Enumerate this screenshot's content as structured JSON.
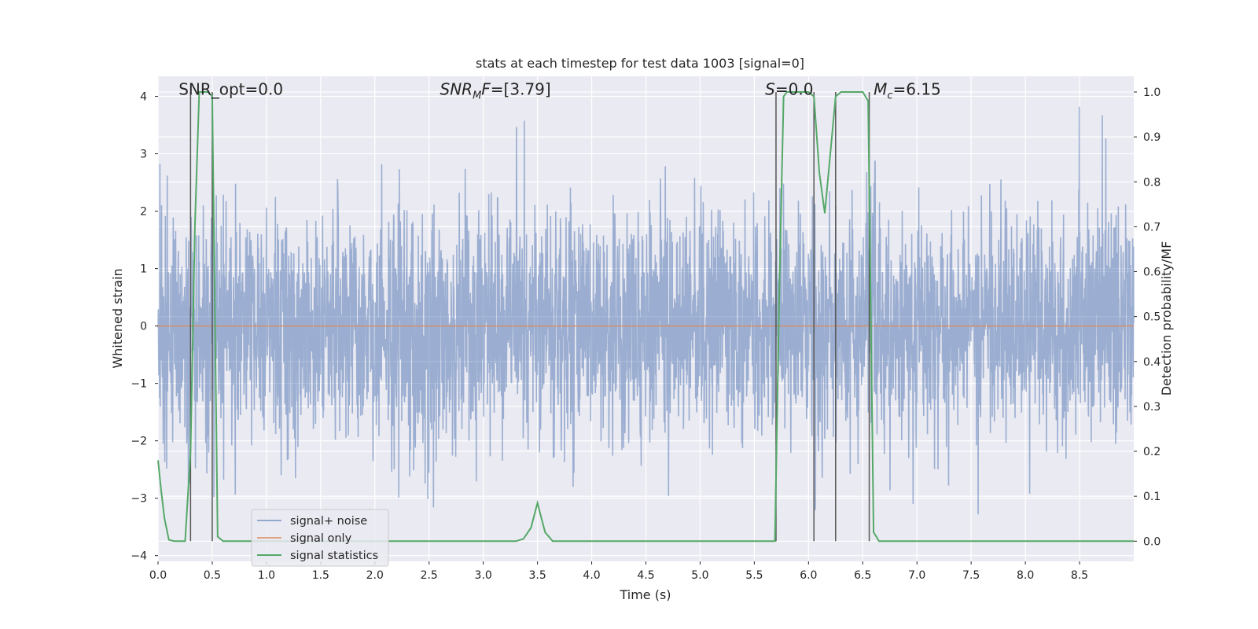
{
  "chart_data": {
    "type": "line",
    "title": "stats at each timestep for test data 1003 [signal=0]",
    "xlabel": "Time (s)",
    "ylabel_left": "Whitened strain",
    "ylabel_right": "Detection probability/MF",
    "xlim": [
      0.0,
      9.0
    ],
    "ylim_left": [
      -4.1,
      4.35
    ],
    "ylim_right": [
      -0.045,
      1.035
    ],
    "x_ticks": [
      "0.0",
      "0.5",
      "1.0",
      "1.5",
      "2.0",
      "2.5",
      "3.0",
      "3.5",
      "4.0",
      "4.5",
      "5.0",
      "5.5",
      "6.0",
      "6.5",
      "7.0",
      "7.5",
      "8.0",
      "8.5"
    ],
    "y_ticks_left": [
      "−4",
      "−3",
      "−2",
      "−1",
      "0",
      "1",
      "2",
      "3",
      "4"
    ],
    "y_ticks_right": [
      "0.0",
      "0.1",
      "0.2",
      "0.3",
      "0.4",
      "0.5",
      "0.6",
      "0.7",
      "0.8",
      "0.9",
      "1.0"
    ],
    "grid": true,
    "legend_placement": "lower-left",
    "colors": {
      "background": "#eaeaf2",
      "grid": "#ffffff",
      "signal_noise": "#4c72b0",
      "signal_only": "#dd8452",
      "statistics": "#55a868",
      "vlines": "#555555"
    },
    "annotations": [
      {
        "id": "snr-opt",
        "text": "SNR_opt=0.0",
        "x": 0.19,
        "y": 4.03
      },
      {
        "id": "snr-mf",
        "text": "SNRMF=[3.79]",
        "x": 2.6,
        "y": 4.03
      },
      {
        "id": "s-val",
        "text": "S=0.0",
        "x": 5.6,
        "y": 4.03
      },
      {
        "id": "mc-val",
        "text": "Mc=6.15",
        "x": 6.6,
        "y": 4.03
      }
    ],
    "vertical_lines_x": [
      0.3,
      0.5,
      5.7,
      6.05,
      6.25,
      6.56
    ],
    "series": [
      {
        "name": "signal+ noise",
        "axis": "left",
        "kind": "noise",
        "duration_s": 9.0,
        "sigma": 1.0
      },
      {
        "name": "signal only",
        "axis": "left",
        "x": [
          0.0,
          9.0
        ],
        "y": [
          0.0,
          0.0
        ]
      },
      {
        "name": "signal statistics",
        "axis": "right",
        "x": [
          0.0,
          0.03,
          0.06,
          0.1,
          0.15,
          0.2,
          0.25,
          0.3,
          0.34,
          0.38,
          0.42,
          0.46,
          0.5,
          0.55,
          0.6,
          0.65,
          3.3,
          3.37,
          3.44,
          3.5,
          3.57,
          3.64,
          3.7,
          5.69,
          5.73,
          5.77,
          5.8,
          5.85,
          5.9,
          5.95,
          6.0,
          6.05,
          6.1,
          6.15,
          6.2,
          6.25,
          6.3,
          6.35,
          6.4,
          6.45,
          6.5,
          6.55,
          6.6,
          6.65,
          6.7,
          9.0
        ],
        "y": [
          0.18,
          0.11,
          0.05,
          0.003,
          0.0,
          0.0,
          0.0,
          0.2,
          0.7,
          1.0,
          1.0,
          1.0,
          0.99,
          0.01,
          0.0,
          0.0,
          0.0,
          0.005,
          0.03,
          0.085,
          0.02,
          0.0,
          0.0,
          0.0,
          0.55,
          0.99,
          1.0,
          1.0,
          1.0,
          1.0,
          1.0,
          0.99,
          0.82,
          0.73,
          0.86,
          0.99,
          1.0,
          1.0,
          1.0,
          1.0,
          1.0,
          0.98,
          0.02,
          0.0,
          0.0,
          0.0
        ]
      }
    ]
  }
}
